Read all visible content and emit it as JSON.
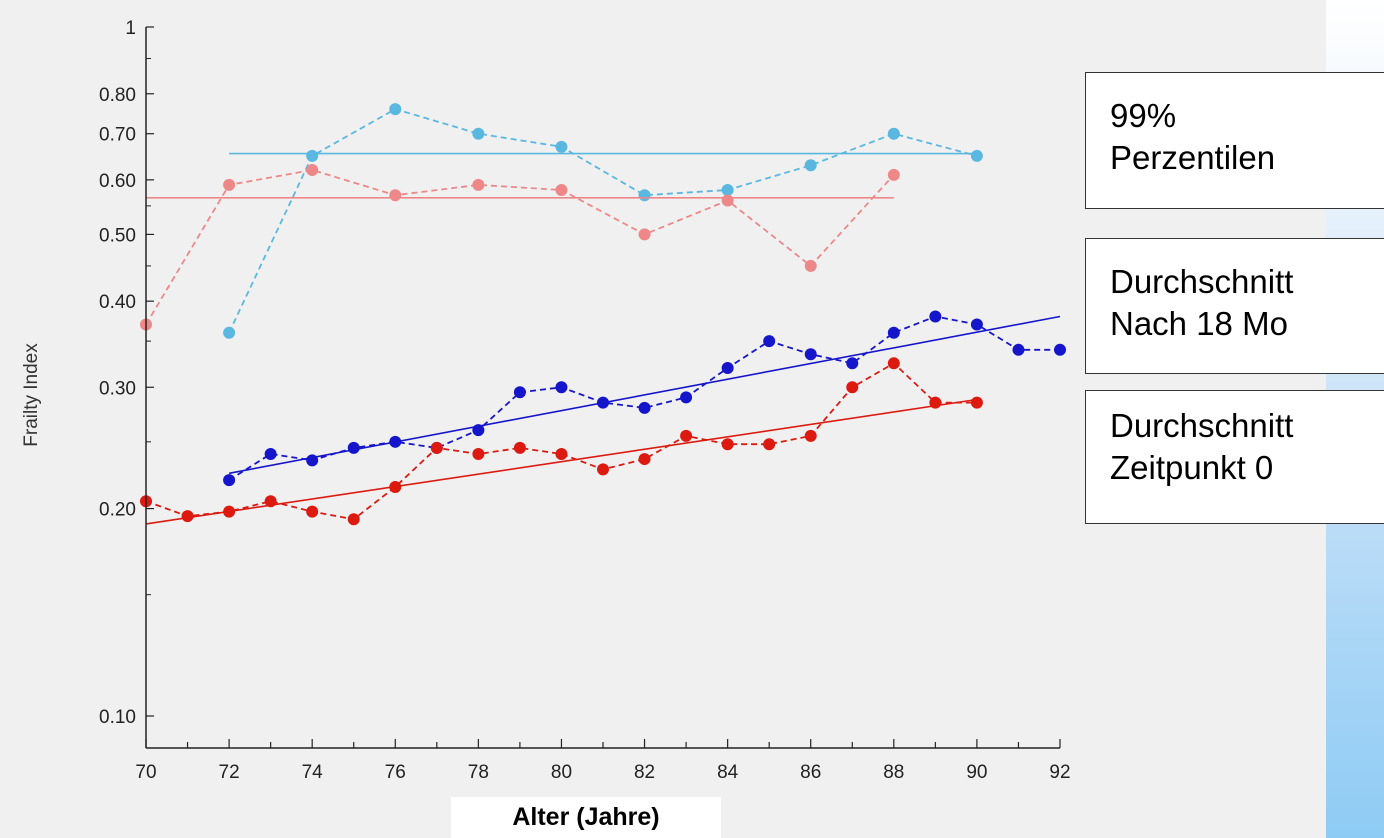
{
  "chart_data": {
    "type": "line",
    "xlabel": "Alter (Jahre)",
    "ylabel": "Frailty Index",
    "y_scale": "log",
    "xlim": [
      70,
      92
    ],
    "ylim": [
      0.1,
      1
    ],
    "x_ticks": [
      "70",
      "72",
      "74",
      "76",
      "78",
      "80",
      "82",
      "84",
      "86",
      "88",
      "90",
      "92"
    ],
    "y_ticks": [
      {
        "value": 1,
        "label": "1"
      },
      {
        "value": 0.8,
        "label": "0.80"
      },
      {
        "value": 0.7,
        "label": "0.70"
      },
      {
        "value": 0.6,
        "label": "0.60"
      },
      {
        "value": 0.5,
        "label": "0.50"
      },
      {
        "value": 0.4,
        "label": "0.40"
      },
      {
        "value": 0.3,
        "label": "0.30"
      },
      {
        "value": 0.2,
        "label": "0.20"
      },
      {
        "value": 0.1,
        "label": "0.10"
      }
    ],
    "series": [
      {
        "color": "#5ab8e0",
        "style": "dashed",
        "markers": true,
        "x": [
          72,
          74,
          76,
          78,
          80,
          82,
          84,
          86,
          88,
          90
        ],
        "y": [
          0.36,
          0.65,
          0.76,
          0.7,
          0.67,
          0.57,
          0.58,
          0.63,
          0.7,
          0.65
        ]
      },
      {
        "color": "#5ab8e0",
        "style": "solid",
        "markers": false,
        "x": [
          72,
          90
        ],
        "y": [
          0.655,
          0.655
        ]
      },
      {
        "color": "#ee8888",
        "style": "dashed",
        "markers": true,
        "x": [
          70,
          72,
          74,
          76,
          78,
          80,
          82,
          84,
          86,
          88
        ],
        "y": [
          0.37,
          0.59,
          0.62,
          0.57,
          0.59,
          0.58,
          0.5,
          0.56,
          0.45,
          0.61
        ]
      },
      {
        "color": "#ee8888",
        "style": "solid",
        "markers": false,
        "x": [
          70,
          88
        ],
        "y": [
          0.565,
          0.565
        ]
      },
      {
        "color": "#1515cc",
        "style": "dashed",
        "markers": true,
        "x": [
          72,
          73,
          74,
          75,
          76,
          77,
          78,
          79,
          80,
          81,
          82,
          83,
          84,
          85,
          86,
          87,
          88,
          89,
          90,
          91,
          92
        ],
        "y": [
          0.22,
          0.24,
          0.235,
          0.245,
          0.25,
          0.245,
          0.26,
          0.295,
          0.3,
          0.285,
          0.28,
          0.29,
          0.32,
          0.35,
          0.335,
          0.325,
          0.36,
          0.38,
          0.37,
          0.34,
          0.34
        ]
      },
      {
        "color": "#1515cc",
        "style": "solid",
        "markers": false,
        "x": [
          72,
          92
        ],
        "y": [
          0.225,
          0.38
        ]
      },
      {
        "color": "#dd1a10",
        "style": "dashed",
        "markers": true,
        "x": [
          70,
          71,
          72,
          73,
          74,
          75,
          76,
          77,
          78,
          79,
          80,
          81,
          82,
          83,
          84,
          85,
          86,
          87,
          88,
          89,
          90
        ],
        "y": [
          0.205,
          0.195,
          0.198,
          0.205,
          0.198,
          0.193,
          0.215,
          0.245,
          0.24,
          0.245,
          0.24,
          0.228,
          0.236,
          0.255,
          0.248,
          0.248,
          0.255,
          0.3,
          0.325,
          0.285,
          0.285
        ]
      },
      {
        "color": "#dd1a10",
        "style": "solid",
        "markers": false,
        "x": [
          70,
          90
        ],
        "y": [
          0.19,
          0.288
        ]
      }
    ],
    "legend": [
      {
        "lines": [
          "99%",
          "Perzentilen"
        ]
      },
      {
        "lines": [
          "Durchschnitt",
          "Nach 18 Mo"
        ]
      },
      {
        "lines": [
          "Durchschnitt",
          "Zeitpunkt 0"
        ]
      }
    ]
  }
}
